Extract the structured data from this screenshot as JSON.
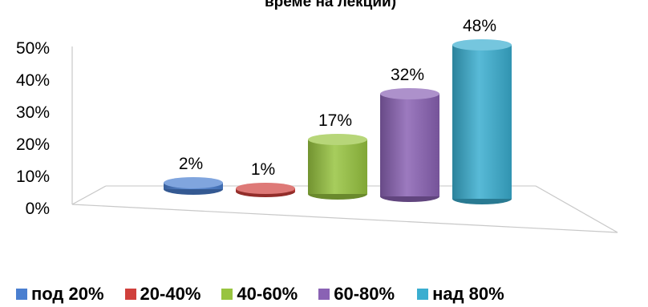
{
  "chart_data": {
    "type": "bar",
    "title": "време на лекции)",
    "categories": [
      "под 20%",
      "20-40%",
      "40-60%",
      "60-80%",
      "над 80%"
    ],
    "values": [
      2,
      1,
      17,
      32,
      48
    ],
    "data_labels": [
      "2%",
      "1%",
      "17%",
      "32%",
      "48%"
    ],
    "y_ticks": [
      "0%",
      "10%",
      "20%",
      "30%",
      "40%",
      "50%"
    ],
    "ylim": [
      0,
      50
    ],
    "legend_position": "bottom",
    "grid": false,
    "colors": [
      "#4a7fd0",
      "#d0403c",
      "#98c440",
      "#8a62b4",
      "#3aaed0"
    ]
  }
}
